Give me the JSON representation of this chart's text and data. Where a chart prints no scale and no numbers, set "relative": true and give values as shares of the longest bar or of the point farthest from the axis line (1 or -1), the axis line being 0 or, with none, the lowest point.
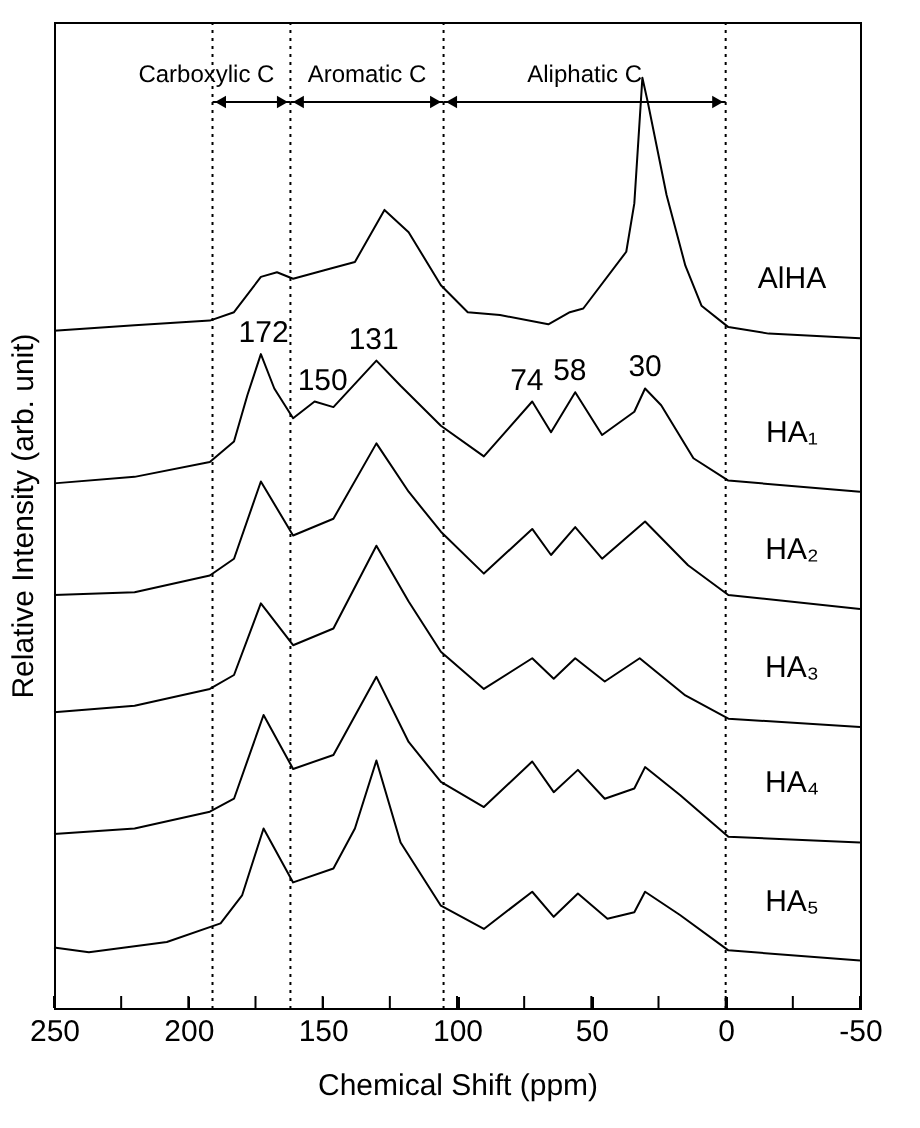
{
  "chart_data": {
    "type": "line",
    "relative": true,
    "xlabel": "Chemical Shift (ppm)",
    "ylabel": "Relative Intensity (arb. unit)",
    "xlim": [
      250,
      -50
    ],
    "xticks": [
      250,
      {
        "value": 225,
        "label": null
      },
      200,
      {
        "value": 175,
        "label": null
      },
      150,
      {
        "value": 125,
        "label": null
      },
      100,
      {
        "value": 75,
        "label": null
      },
      50,
      {
        "value": 25,
        "label": null
      },
      0,
      {
        "value": -25,
        "label": null
      },
      -50
    ],
    "series": [
      {
        "name": "AlHA",
        "color": "#000000",
        "x": [
          250,
          220,
          192,
          183,
          173,
          167,
          161,
          147,
          138,
          127,
          118,
          106,
          96,
          84,
          66,
          58,
          53,
          37,
          34,
          31,
          29,
          22,
          15,
          9,
          -1,
          -16,
          -50
        ],
        "values": [
          0.728,
          0.734,
          0.739,
          0.748,
          0.786,
          0.791,
          0.784,
          0.795,
          0.802,
          0.858,
          0.834,
          0.777,
          0.748,
          0.745,
          0.735,
          0.748,
          0.752,
          0.813,
          0.865,
          1.0,
          0.974,
          0.874,
          0.798,
          0.755,
          0.732,
          0.725,
          0.72
        ]
      },
      {
        "name": "HA₁",
        "color": "#000000",
        "x": [
          250,
          220,
          192,
          183,
          178,
          173,
          168,
          161,
          153,
          146,
          130,
          121,
          106,
          90,
          72,
          65,
          56,
          46,
          34,
          30,
          24,
          12,
          -1,
          -50
        ],
        "values": [
          0.564,
          0.571,
          0.587,
          0.609,
          0.659,
          0.703,
          0.666,
          0.634,
          0.652,
          0.646,
          0.696,
          0.669,
          0.626,
          0.593,
          0.652,
          0.619,
          0.662,
          0.616,
          0.641,
          0.666,
          0.648,
          0.591,
          0.567,
          0.555
        ]
      },
      {
        "name": "HA₂",
        "color": "#000000",
        "x": [
          250,
          220,
          192,
          183,
          173,
          161,
          146,
          130,
          118,
          106,
          90,
          72,
          65,
          56,
          46,
          30,
          14,
          -1,
          -50
        ],
        "values": [
          0.444,
          0.447,
          0.465,
          0.483,
          0.566,
          0.508,
          0.526,
          0.607,
          0.555,
          0.512,
          0.467,
          0.515,
          0.487,
          0.517,
          0.483,
          0.523,
          0.476,
          0.444,
          0.429
        ]
      },
      {
        "name": "HA₃",
        "color": "#000000",
        "x": [
          250,
          220,
          192,
          183,
          173,
          161,
          146,
          130,
          118,
          106,
          90,
          72,
          64,
          56,
          45,
          32,
          15,
          -1,
          -50
        ],
        "values": [
          0.318,
          0.325,
          0.343,
          0.358,
          0.435,
          0.39,
          0.408,
          0.497,
          0.437,
          0.383,
          0.343,
          0.376,
          0.354,
          0.376,
          0.351,
          0.376,
          0.336,
          0.311,
          0.302
        ]
      },
      {
        "name": "HA₄",
        "color": "#000000",
        "x": [
          250,
          220,
          192,
          183,
          172,
          161,
          146,
          130,
          118,
          106,
          90,
          72,
          64,
          55,
          45,
          34,
          30,
          17,
          -1,
          -50
        ],
        "values": [
          0.187,
          0.193,
          0.211,
          0.225,
          0.315,
          0.257,
          0.272,
          0.356,
          0.286,
          0.243,
          0.216,
          0.265,
          0.232,
          0.256,
          0.225,
          0.236,
          0.259,
          0.229,
          0.184,
          0.178
        ]
      },
      {
        "name": "HA₅",
        "color": "#000000",
        "x": [
          250,
          237,
          208,
          188,
          180,
          172,
          161,
          146,
          138,
          130,
          121,
          106,
          90,
          72,
          64,
          55,
          44,
          34,
          30,
          17,
          -1,
          -50
        ],
        "values": [
          0.065,
          0.06,
          0.071,
          0.091,
          0.121,
          0.193,
          0.135,
          0.15,
          0.193,
          0.266,
          0.178,
          0.11,
          0.085,
          0.125,
          0.098,
          0.123,
          0.096,
          0.103,
          0.125,
          0.1,
          0.062,
          0.051
        ]
      }
    ],
    "ref_lines": [
      {
        "axis": "x",
        "value": 191,
        "line_style": "dotted"
      },
      {
        "axis": "x",
        "value": 162,
        "line_style": "dotted"
      },
      {
        "axis": "x",
        "value": 105,
        "line_style": "dotted"
      },
      {
        "axis": "x",
        "value": 0,
        "line_style": "dotted"
      }
    ],
    "annotations": [
      "Carboxylic C",
      "Aromatic C",
      "Aliphatic C",
      {
        "text": "172",
        "x": 172,
        "y": 0.703
      },
      {
        "text": "150",
        "x": 150,
        "y": 0.652
      },
      {
        "text": "131",
        "x": 131,
        "y": 0.696
      },
      {
        "text": "74",
        "x": 74,
        "y": 0.652
      },
      {
        "text": "58",
        "x": 58,
        "y": 0.662
      },
      {
        "text": "30",
        "x": 30,
        "y": 0.666
      }
    ]
  }
}
